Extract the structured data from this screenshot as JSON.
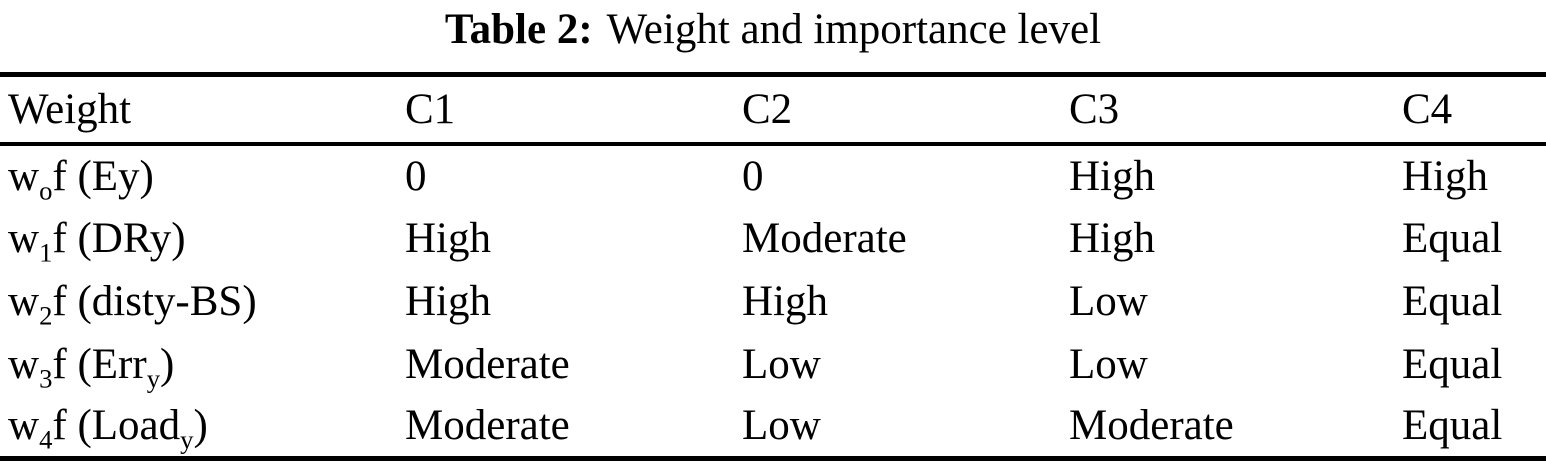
{
  "caption": {
    "number": "Table 2:",
    "text": "Weight and importance level"
  },
  "table": {
    "columns": [
      "Weight",
      "C1",
      "C2",
      "C3",
      "C4"
    ],
    "rows": [
      {
        "label": [
          {
            "text": "w"
          },
          {
            "text": "o",
            "sub": true
          },
          {
            "text": "f (Ey)"
          }
        ],
        "values": [
          "0",
          "0",
          "High",
          "High"
        ]
      },
      {
        "label": [
          {
            "text": "w"
          },
          {
            "text": "1",
            "sub": true
          },
          {
            "text": "f (DRy)"
          }
        ],
        "values": [
          "High",
          "Moderate",
          "High",
          "Equal"
        ]
      },
      {
        "label": [
          {
            "text": "w"
          },
          {
            "text": "2",
            "sub": true
          },
          {
            "text": "f (disty-BS)"
          }
        ],
        "values": [
          "High",
          "High",
          "Low",
          "Equal"
        ]
      },
      {
        "label": [
          {
            "text": "w"
          },
          {
            "text": "3",
            "sub": true
          },
          {
            "text": "f (Err"
          },
          {
            "text": "y",
            "sub": true
          },
          {
            "text": ")"
          }
        ],
        "values": [
          "Moderate",
          "Low",
          "Low",
          "Equal"
        ]
      },
      {
        "label": [
          {
            "text": "w"
          },
          {
            "text": "4",
            "sub": true
          },
          {
            "text": "f (Load"
          },
          {
            "text": "y",
            "sub": true
          },
          {
            "text": ")"
          }
        ],
        "values": [
          "Moderate",
          "Low",
          "Moderate",
          "Equal"
        ]
      }
    ]
  },
  "colors": {
    "text": "#000000",
    "background": "#ffffff",
    "rule": "#000000"
  }
}
